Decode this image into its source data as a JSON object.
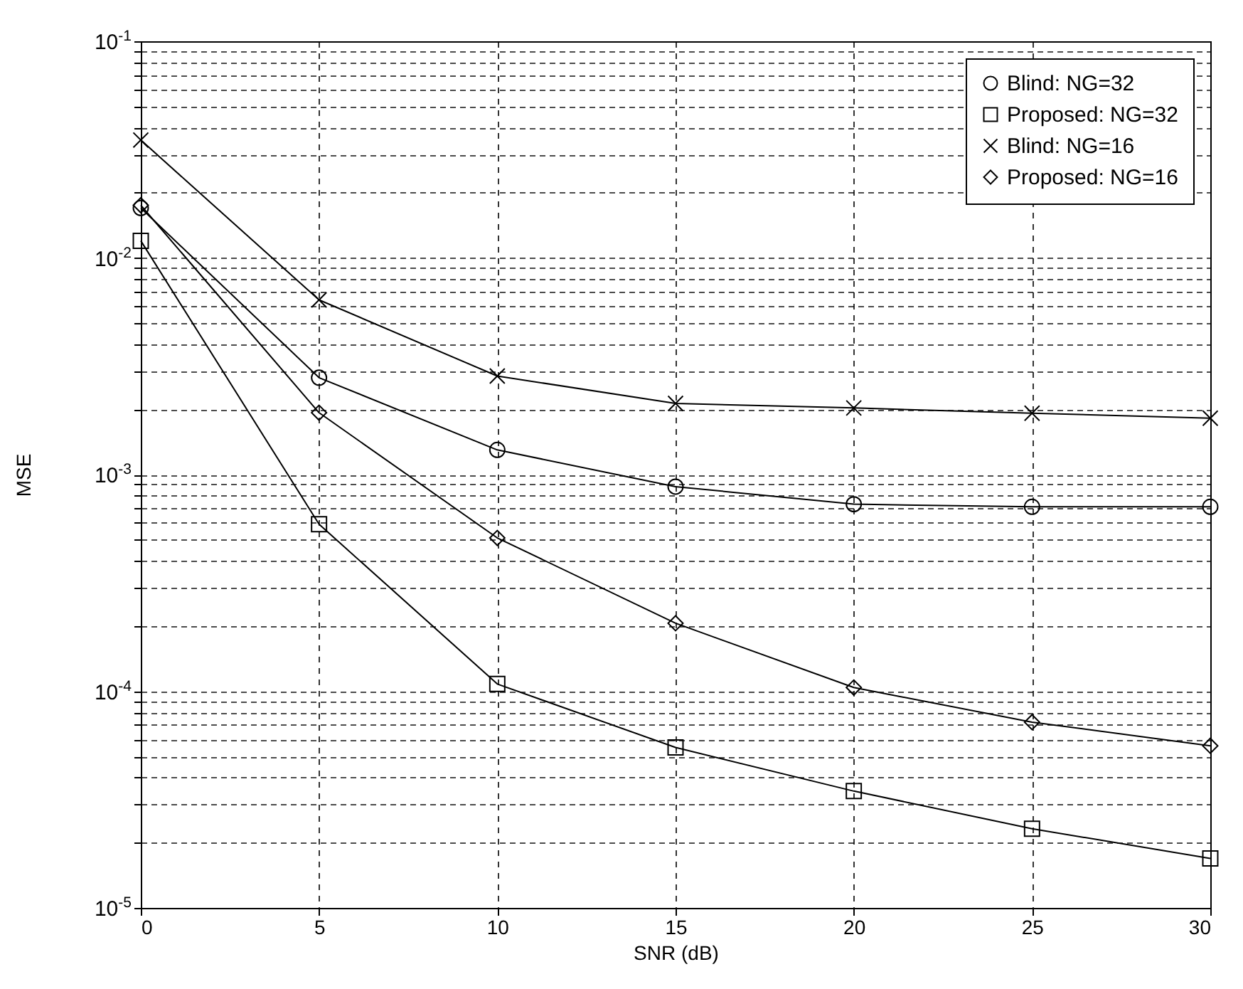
{
  "chart_data": {
    "type": "line",
    "xlabel": "SNR (dB)",
    "ylabel": "MSE",
    "x": [
      0,
      5,
      10,
      15,
      20,
      25,
      30
    ],
    "xlim": [
      0,
      30
    ],
    "xticks": [
      0,
      5,
      10,
      15,
      20,
      25,
      30
    ],
    "ylim": [
      1e-05,
      0.1
    ],
    "log": true,
    "grid": true,
    "legend": "top right",
    "line_style": "solid",
    "yticks": [
      {
        "value": 1e-05,
        "label": "10$^{-5}$"
      },
      {
        "value": 2e-05,
        "label": null
      },
      {
        "value": 3e-05,
        "label": null
      },
      {
        "value": 4e-05,
        "label": null
      },
      {
        "value": 5e-05,
        "label": null
      },
      {
        "value": 6e-05,
        "label": null
      },
      {
        "value": 7e-05,
        "label": null
      },
      {
        "value": 8e-05,
        "label": null
      },
      {
        "value": 9e-05,
        "label": null
      },
      {
        "value": 0.0001,
        "label": "10$^{-4}$"
      },
      {
        "value": 0.0002,
        "label": null
      },
      {
        "value": 0.0003,
        "label": null
      },
      {
        "value": 0.0004,
        "label": null
      },
      {
        "value": 0.0005,
        "label": null
      },
      {
        "value": 0.0006,
        "label": null
      },
      {
        "value": 0.0007,
        "label": null
      },
      {
        "value": 0.0008,
        "label": null
      },
      {
        "value": 0.0009,
        "label": null
      },
      {
        "value": 0.001,
        "label": "10$^{-3}$"
      },
      {
        "value": 0.002,
        "label": null
      },
      {
        "value": 0.003,
        "label": null
      },
      {
        "value": 0.004,
        "label": null
      },
      {
        "value": 0.005,
        "label": null
      },
      {
        "value": 0.006,
        "label": null
      },
      {
        "value": 0.007,
        "label": null
      },
      {
        "value": 0.008,
        "label": null
      },
      {
        "value": 0.009,
        "label": null
      },
      {
        "value": 0.01,
        "label": "10$^{-2}$"
      },
      {
        "value": 0.02,
        "label": null
      },
      {
        "value": 0.03,
        "label": null
      },
      {
        "value": 0.04,
        "label": null
      },
      {
        "value": 0.05,
        "label": null
      },
      {
        "value": 0.06,
        "label": null
      },
      {
        "value": 0.07,
        "label": null
      },
      {
        "value": 0.08,
        "label": null
      },
      {
        "value": 0.09,
        "label": null
      },
      {
        "value": 0.1,
        "label": "10$^{-1}$"
      }
    ],
    "series": [
      {
        "name": "Blind: NG=32",
        "color": "#000000",
        "marker": "circle",
        "values": [
          0.017,
          0.0028,
          0.0013,
          0.00088,
          0.00073,
          0.00071,
          0.00071
        ]
      },
      {
        "name": "Proposed: NG=32",
        "color": "#000000",
        "marker": "square",
        "values": [
          0.012,
          0.00059,
          0.000108,
          5.5e-05,
          3.46e-05,
          2.32e-05,
          1.69e-05
        ]
      },
      {
        "name": "Blind: NG=16",
        "color": "#000000",
        "marker": "cross",
        "values": [
          0.035,
          0.0064,
          0.00285,
          0.00213,
          0.00203,
          0.00192,
          0.00182
        ]
      },
      {
        "name": "Proposed: NG=16",
        "color": "#000000",
        "marker": "diamond",
        "values": [
          0.0175,
          0.00193,
          0.00051,
          0.000206,
          0.000104,
          7.2e-05,
          5.6e-05
        ]
      }
    ]
  }
}
